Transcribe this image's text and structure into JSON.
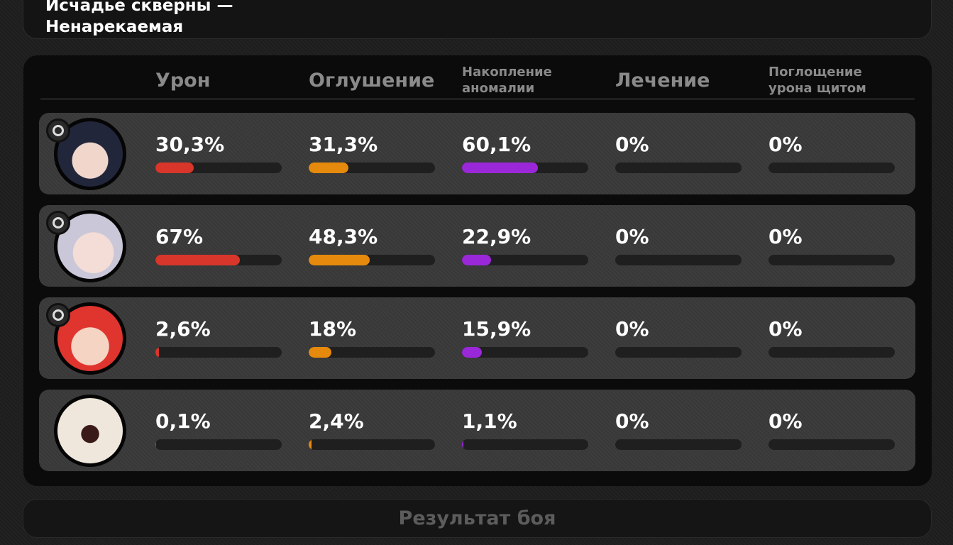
{
  "header": {
    "title_lines": [
      "Исчадье скверны —",
      "Ненарекаемая"
    ]
  },
  "table": {
    "xlim": [
      0,
      100
    ],
    "columns": [
      {
        "label": "Урон",
        "color": "#d8362a"
      },
      {
        "label": "Оглушение",
        "color": "#e58a0c"
      },
      {
        "label": "Накопление аномалии",
        "color": "#9a28d8"
      },
      {
        "label": "Лечение",
        "color": "#35b55a"
      },
      {
        "label": "Поглощение урона щитом",
        "color": "#2f8fd8"
      }
    ],
    "rows": [
      {
        "values": [
          30.3,
          31.3,
          60.1,
          0,
          0
        ],
        "value_labels": [
          "30,3%",
          "31,3%",
          "60,1%",
          "0%",
          "0%"
        ]
      },
      {
        "values": [
          67,
          48.3,
          22.9,
          0,
          0
        ],
        "value_labels": [
          "67%",
          "48,3%",
          "22,9%",
          "0%",
          "0%"
        ]
      },
      {
        "values": [
          2.6,
          18,
          15.9,
          0,
          0
        ],
        "value_labels": [
          "2,6%",
          "18%",
          "15,9%",
          "0%",
          "0%"
        ]
      },
      {
        "values": [
          0.1,
          2.4,
          1.1,
          0,
          0
        ],
        "value_labels": [
          "0,1%",
          "2,4%",
          "1,1%",
          "0%",
          "0%"
        ]
      }
    ]
  },
  "footer": {
    "button": "Результат боя"
  }
}
